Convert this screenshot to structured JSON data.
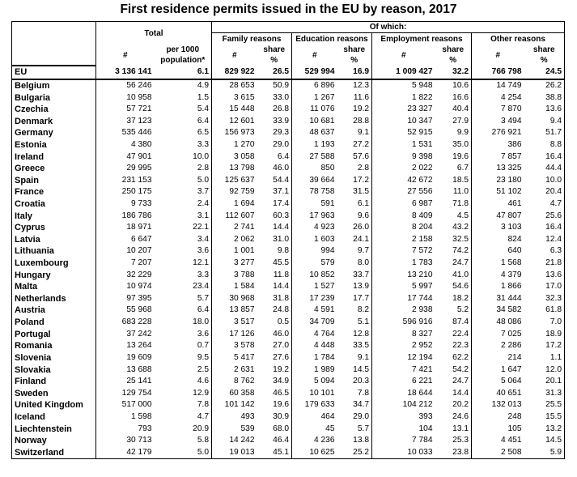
{
  "title": "First residence permits issued in the EU by reason, 2017",
  "headers": {
    "total": "Total",
    "of_which": "Of which:",
    "groups": [
      "Family reasons",
      "Education reasons",
      "Employment reasons",
      "Other reasons"
    ],
    "count": "#",
    "per_1000_line1": "per 1000",
    "per_1000_line2": "population*",
    "share_line1": "share",
    "share_line2": "%"
  },
  "rows": [
    {
      "name": "EU",
      "total": "3 136 141",
      "per1000": "6.1",
      "fam": "829 922",
      "fam_s": "26.5",
      "edu": "529 994",
      "edu_s": "16.9",
      "emp": "1 009 427",
      "emp_s": "32.2",
      "oth": "766 798",
      "oth_s": "24.5"
    },
    {
      "name": "Belgium",
      "total": "56 246",
      "per1000": "4.9",
      "fam": "28 653",
      "fam_s": "50.9",
      "edu": "6 896",
      "edu_s": "12.3",
      "emp": "5 948",
      "emp_s": "10.6",
      "oth": "14 749",
      "oth_s": "26.2"
    },
    {
      "name": "Bulgaria",
      "total": "10 958",
      "per1000": "1.5",
      "fam": "3 615",
      "fam_s": "33.0",
      "edu": "1 267",
      "edu_s": "11.6",
      "emp": "1 822",
      "emp_s": "16.6",
      "oth": "4 254",
      "oth_s": "38.8"
    },
    {
      "name": "Czechia",
      "total": "57 721",
      "per1000": "5.4",
      "fam": "15 448",
      "fam_s": "26.8",
      "edu": "11 076",
      "edu_s": "19.2",
      "emp": "23 327",
      "emp_s": "40.4",
      "oth": "7 870",
      "oth_s": "13.6"
    },
    {
      "name": "Denmark",
      "total": "37 123",
      "per1000": "6.4",
      "fam": "12 601",
      "fam_s": "33.9",
      "edu": "10 681",
      "edu_s": "28.8",
      "emp": "10 347",
      "emp_s": "27.9",
      "oth": "3 494",
      "oth_s": "9.4"
    },
    {
      "name": "Germany",
      "total": "535 446",
      "per1000": "6.5",
      "fam": "156 973",
      "fam_s": "29.3",
      "edu": "48 637",
      "edu_s": "9.1",
      "emp": "52 915",
      "emp_s": "9.9",
      "oth": "276 921",
      "oth_s": "51.7"
    },
    {
      "name": "Estonia",
      "total": "4 380",
      "per1000": "3.3",
      "fam": "1 270",
      "fam_s": "29.0",
      "edu": "1 193",
      "edu_s": "27.2",
      "emp": "1 531",
      "emp_s": "35.0",
      "oth": "386",
      "oth_s": "8.8"
    },
    {
      "name": "Ireland",
      "total": "47 901",
      "per1000": "10.0",
      "fam": "3 058",
      "fam_s": "6.4",
      "edu": "27 588",
      "edu_s": "57.6",
      "emp": "9 398",
      "emp_s": "19.6",
      "oth": "7 857",
      "oth_s": "16.4"
    },
    {
      "name": "Greece",
      "total": "29 995",
      "per1000": "2.8",
      "fam": "13 798",
      "fam_s": "46.0",
      "edu": "850",
      "edu_s": "2.8",
      "emp": "2 022",
      "emp_s": "6.7",
      "oth": "13 325",
      "oth_s": "44.4"
    },
    {
      "name": "Spain",
      "total": "231 153",
      "per1000": "5.0",
      "fam": "125 637",
      "fam_s": "54.4",
      "edu": "39 664",
      "edu_s": "17.2",
      "emp": "42 672",
      "emp_s": "18.5",
      "oth": "23 180",
      "oth_s": "10.0"
    },
    {
      "name": "France",
      "total": "250 175",
      "per1000": "3.7",
      "fam": "92 759",
      "fam_s": "37.1",
      "edu": "78 758",
      "edu_s": "31.5",
      "emp": "27 556",
      "emp_s": "11.0",
      "oth": "51 102",
      "oth_s": "20.4"
    },
    {
      "name": "Croatia",
      "total": "9 733",
      "per1000": "2.4",
      "fam": "1 694",
      "fam_s": "17.4",
      "edu": "591",
      "edu_s": "6.1",
      "emp": "6 987",
      "emp_s": "71.8",
      "oth": "461",
      "oth_s": "4.7"
    },
    {
      "name": "Italy",
      "total": "186 786",
      "per1000": "3.1",
      "fam": "112 607",
      "fam_s": "60.3",
      "edu": "17 963",
      "edu_s": "9.6",
      "emp": "8 409",
      "emp_s": "4.5",
      "oth": "47 807",
      "oth_s": "25.6"
    },
    {
      "name": "Cyprus",
      "total": "18 971",
      "per1000": "22.1",
      "fam": "2 741",
      "fam_s": "14.4",
      "edu": "4 923",
      "edu_s": "26.0",
      "emp": "8 204",
      "emp_s": "43.2",
      "oth": "3 103",
      "oth_s": "16.4"
    },
    {
      "name": "Latvia",
      "total": "6 647",
      "per1000": "3.4",
      "fam": "2 062",
      "fam_s": "31.0",
      "edu": "1 603",
      "edu_s": "24.1",
      "emp": "2 158",
      "emp_s": "32.5",
      "oth": "824",
      "oth_s": "12.4"
    },
    {
      "name": "Lithuania",
      "total": "10 207",
      "per1000": "3.6",
      "fam": "1 001",
      "fam_s": "9.8",
      "edu": "994",
      "edu_s": "9.7",
      "emp": "7 572",
      "emp_s": "74.2",
      "oth": "640",
      "oth_s": "6.3"
    },
    {
      "name": "Luxembourg",
      "total": "7 207",
      "per1000": "12.1",
      "fam": "3 277",
      "fam_s": "45.5",
      "edu": "579",
      "edu_s": "8.0",
      "emp": "1 783",
      "emp_s": "24.7",
      "oth": "1 568",
      "oth_s": "21.8"
    },
    {
      "name": "Hungary",
      "total": "32 229",
      "per1000": "3.3",
      "fam": "3 788",
      "fam_s": "11.8",
      "edu": "10 852",
      "edu_s": "33.7",
      "emp": "13 210",
      "emp_s": "41.0",
      "oth": "4 379",
      "oth_s": "13.6"
    },
    {
      "name": "Malta",
      "total": "10 974",
      "per1000": "23.4",
      "fam": "1 584",
      "fam_s": "14.4",
      "edu": "1 527",
      "edu_s": "13.9",
      "emp": "5 997",
      "emp_s": "54.6",
      "oth": "1 866",
      "oth_s": "17.0"
    },
    {
      "name": "Netherlands",
      "total": "97 395",
      "per1000": "5.7",
      "fam": "30 968",
      "fam_s": "31.8",
      "edu": "17 239",
      "edu_s": "17.7",
      "emp": "17 744",
      "emp_s": "18.2",
      "oth": "31 444",
      "oth_s": "32.3"
    },
    {
      "name": "Austria",
      "total": "55 968",
      "per1000": "6.4",
      "fam": "13 857",
      "fam_s": "24.8",
      "edu": "4 591",
      "edu_s": "8.2",
      "emp": "2 938",
      "emp_s": "5.2",
      "oth": "34 582",
      "oth_s": "61.8"
    },
    {
      "name": "Poland",
      "total": "683 228",
      "per1000": "18.0",
      "fam": "3 517",
      "fam_s": "0.5",
      "edu": "34 709",
      "edu_s": "5.1",
      "emp": "596 916",
      "emp_s": "87.4",
      "oth": "48 086",
      "oth_s": "7.0"
    },
    {
      "name": "Portugal",
      "total": "37 242",
      "per1000": "3.6",
      "fam": "17 126",
      "fam_s": "46.0",
      "edu": "4 764",
      "edu_s": "12.8",
      "emp": "8 327",
      "emp_s": "22.4",
      "oth": "7 025",
      "oth_s": "18.9"
    },
    {
      "name": "Romania",
      "total": "13 264",
      "per1000": "0.7",
      "fam": "3 578",
      "fam_s": "27.0",
      "edu": "4 448",
      "edu_s": "33.5",
      "emp": "2 952",
      "emp_s": "22.3",
      "oth": "2 286",
      "oth_s": "17.2"
    },
    {
      "name": "Slovenia",
      "total": "19 609",
      "per1000": "9.5",
      "fam": "5 417",
      "fam_s": "27.6",
      "edu": "1 784",
      "edu_s": "9.1",
      "emp": "12 194",
      "emp_s": "62.2",
      "oth": "214",
      "oth_s": "1.1"
    },
    {
      "name": "Slovakia",
      "total": "13 688",
      "per1000": "2.5",
      "fam": "2 631",
      "fam_s": "19.2",
      "edu": "1 989",
      "edu_s": "14.5",
      "emp": "7 421",
      "emp_s": "54.2",
      "oth": "1 647",
      "oth_s": "12.0"
    },
    {
      "name": "Finland",
      "total": "25 141",
      "per1000": "4.6",
      "fam": "8 762",
      "fam_s": "34.9",
      "edu": "5 094",
      "edu_s": "20.3",
      "emp": "6 221",
      "emp_s": "24.7",
      "oth": "5 064",
      "oth_s": "20.1"
    },
    {
      "name": "Sweden",
      "total": "129 754",
      "per1000": "12.9",
      "fam": "60 358",
      "fam_s": "46.5",
      "edu": "10 101",
      "edu_s": "7.8",
      "emp": "18 644",
      "emp_s": "14.4",
      "oth": "40 651",
      "oth_s": "31.3"
    },
    {
      "name": "United Kingdom",
      "total": "517 000",
      "per1000": "7.8",
      "fam": "101 142",
      "fam_s": "19.6",
      "edu": "179 633",
      "edu_s": "34.7",
      "emp": "104 212",
      "emp_s": "20.2",
      "oth": "132 013",
      "oth_s": "25.5"
    },
    {
      "name": "Iceland",
      "total": "1 598",
      "per1000": "4.7",
      "fam": "493",
      "fam_s": "30.9",
      "edu": "464",
      "edu_s": "29.0",
      "emp": "393",
      "emp_s": "24.6",
      "oth": "248",
      "oth_s": "15.5"
    },
    {
      "name": "Liechtenstein",
      "total": "793",
      "per1000": "20.9",
      "fam": "539",
      "fam_s": "68.0",
      "edu": "45",
      "edu_s": "5.7",
      "emp": "104",
      "emp_s": "13.1",
      "oth": "105",
      "oth_s": "13.2"
    },
    {
      "name": "Norway",
      "total": "30 713",
      "per1000": "5.8",
      "fam": "14 242",
      "fam_s": "46.4",
      "edu": "4 236",
      "edu_s": "13.8",
      "emp": "7 784",
      "emp_s": "25.3",
      "oth": "4 451",
      "oth_s": "14.5"
    },
    {
      "name": "Switzerland",
      "total": "42 179",
      "per1000": "5.0",
      "fam": "19 013",
      "fam_s": "45.1",
      "edu": "10 625",
      "edu_s": "25.2",
      "emp": "10 033",
      "emp_s": "23.8",
      "oth": "2 508",
      "oth_s": "5.9"
    }
  ]
}
